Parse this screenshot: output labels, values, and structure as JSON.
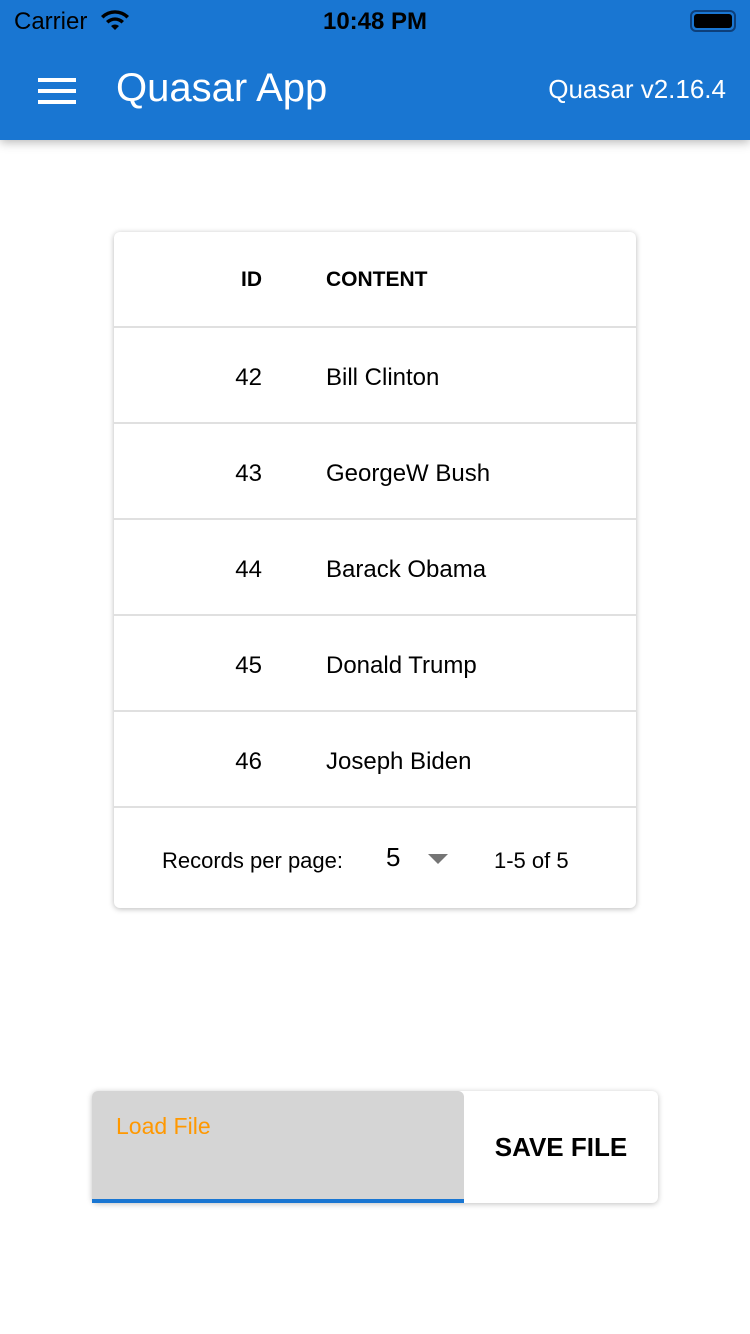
{
  "status_bar": {
    "carrier": "Carrier",
    "time": "10:48 PM"
  },
  "header": {
    "title": "Quasar App",
    "version": "Quasar v2.16.4"
  },
  "table": {
    "columns": [
      "ID",
      "CONTENT"
    ],
    "rows": [
      {
        "id": "42",
        "content": "Bill Clinton"
      },
      {
        "id": "43",
        "content": "GeorgeW Bush"
      },
      {
        "id": "44",
        "content": "Barack Obama"
      },
      {
        "id": "45",
        "content": "Donald Trump"
      },
      {
        "id": "46",
        "content": "Joseph Biden"
      }
    ],
    "pagination": {
      "label": "Records per page:",
      "per_page": "5",
      "range": "1-5 of 5"
    }
  },
  "files": {
    "load_label": "Load File",
    "save_label": "SAVE FILE"
  },
  "colors": {
    "primary": "#1976d2",
    "load_label": "#ff9800"
  }
}
